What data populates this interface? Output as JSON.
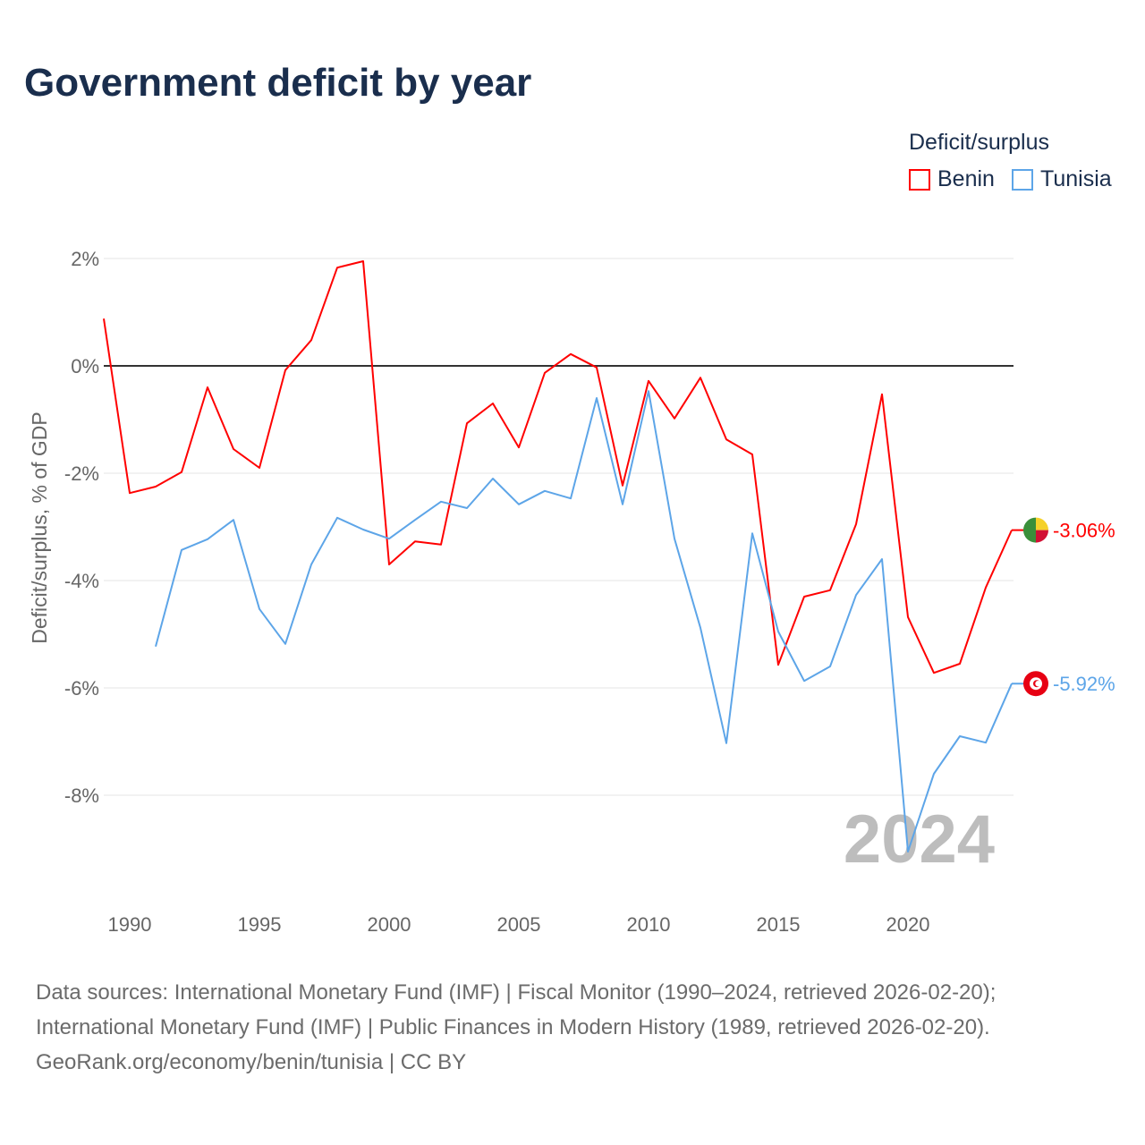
{
  "title": "Government deficit by year",
  "legend": {
    "title": "Deficit/surplus",
    "items": [
      {
        "label": "Benin",
        "color": "#ff0000"
      },
      {
        "label": "Tunisia",
        "color": "#5da5e8"
      }
    ]
  },
  "source": {
    "line1": "Data sources: International Monetary Fund (IMF) | Fiscal Monitor (1990–2024, retrieved 2026-02-20);",
    "line2": "International Monetary Fund (IMF) | Public Finances in Modern History (1989, retrieved 2026-02-20).",
    "line3": "GeoRank.org/economy/benin/tunisia | CC BY"
  },
  "chart_data": {
    "type": "line",
    "title": "Government deficit by year",
    "ylabel": "Deficit/surplus, % of GDP",
    "xlabel": "",
    "year_watermark": "2024",
    "xlim": [
      1989,
      2024
    ],
    "ylim": [
      -9.8,
      2.5
    ],
    "xticks": [
      1990,
      1995,
      2000,
      2005,
      2010,
      2015,
      2020
    ],
    "yticks": [
      {
        "v": 2,
        "label": "2%"
      },
      {
        "v": 0,
        "label": "0%"
      },
      {
        "v": -2,
        "label": "-2%"
      },
      {
        "v": -4,
        "label": "-4%"
      },
      {
        "v": -6,
        "label": "-6%"
      },
      {
        "v": -8,
        "label": "-8%"
      }
    ],
    "series": [
      {
        "name": "Benin",
        "color": "#ff0000",
        "end_label": "-3.06%",
        "start_year": 1989,
        "values": [
          0.88,
          -2.37,
          -2.25,
          -1.98,
          -0.4,
          -1.55,
          -1.9,
          -0.08,
          0.48,
          1.83,
          1.95,
          -3.7,
          -3.27,
          -3.33,
          -1.07,
          -0.7,
          -1.52,
          -0.13,
          0.22,
          -0.03,
          -2.23,
          -0.28,
          -0.98,
          -0.22,
          -1.37,
          -1.65,
          -5.57,
          -4.3,
          -4.18,
          -2.95,
          -0.53,
          -4.68,
          -5.72,
          -5.55,
          -4.13,
          -3.06
        ]
      },
      {
        "name": "Tunisia",
        "color": "#5da5e8",
        "end_label": "-5.92%",
        "start_year": 1991,
        "values": [
          -5.23,
          -3.43,
          -3.23,
          -2.87,
          -4.53,
          -5.18,
          -3.7,
          -2.83,
          -3.05,
          -3.22,
          -2.87,
          -2.53,
          -2.65,
          -2.1,
          -2.58,
          -2.33,
          -2.47,
          -0.6,
          -2.58,
          -0.47,
          -3.22,
          -4.88,
          -7.03,
          -3.12,
          -4.95,
          -5.87,
          -5.6,
          -4.27,
          -3.6,
          -9.05,
          -7.6,
          -6.9,
          -7.02,
          -5.92
        ]
      }
    ]
  }
}
